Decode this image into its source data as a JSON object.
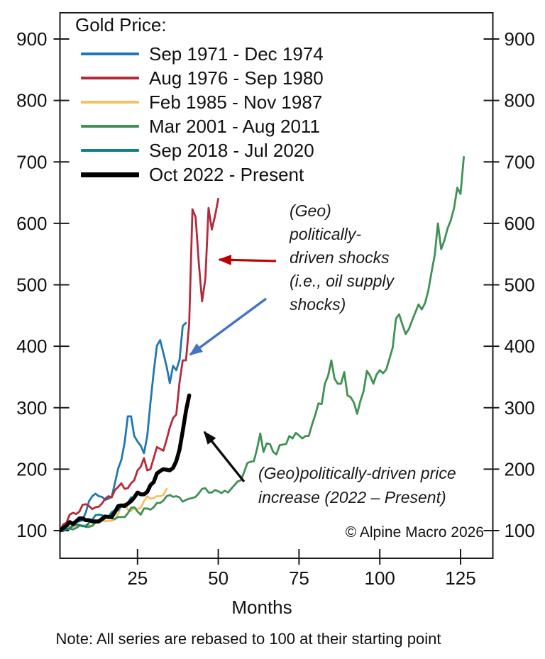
{
  "chart_data": {
    "type": "line",
    "legend_title": "Gold Price:",
    "xlabel": "Months",
    "note": "Note: All series are rebased to 100 at their starting point",
    "copyright": "© Alpine Macro 2026",
    "x_ticks": [
      25,
      50,
      75,
      100,
      125
    ],
    "y_ticks": [
      100,
      200,
      300,
      400,
      500,
      600,
      700,
      800,
      900
    ],
    "xlim": [
      1,
      135
    ],
    "ylim": [
      55,
      943
    ],
    "grid": false,
    "legend_position": "top-left",
    "axis_color": "#1a1a1a",
    "series": [
      {
        "label": "Sep 1971 - Dec 1974",
        "color": "#1f77b4",
        "line_width": 2.8,
        "values": [
          100,
          101,
          102,
          104,
          109,
          115,
          115,
          117,
          130,
          148,
          156,
          160,
          156,
          155,
          150,
          152,
          155,
          177,
          201,
          215,
          243,
          286,
          286,
          254,
          245,
          238,
          226,
          254,
          308,
          358,
          401,
          410,
          389,
          367,
          340,
          368,
          361,
          378,
          433,
          438
        ]
      },
      {
        "label": "Aug 1976 - Sep 1980",
        "color": "#b32b3b",
        "line_width": 2.8,
        "values": [
          100,
          110,
          113,
          126,
          129,
          127,
          131,
          142,
          143,
          140,
          135,
          138,
          139,
          144,
          152,
          156,
          154,
          166,
          171,
          177,
          168,
          169,
          177,
          182,
          198,
          204,
          218,
          198,
          200,
          218,
          236,
          233,
          230,
          248,
          268,
          283,
          289,
          341,
          377,
          377,
          437,
          623,
          610,
          533,
          473,
          510,
          625,
          590,
          612,
          640
        ]
      },
      {
        "label": "Feb 1985 - Nov 1987",
        "color": "#f5c15f",
        "line_width": 2.8,
        "values": [
          100,
          102,
          109,
          106,
          106,
          106,
          110,
          108,
          109,
          109,
          107,
          116,
          114,
          117,
          115,
          116,
          116,
          118,
          127,
          142,
          144,
          134,
          132,
          137,
          135,
          137,
          148,
          156,
          152,
          153,
          156,
          156,
          158,
          168
        ]
      },
      {
        "label": "Mar 2001 - Aug 2011",
        "color": "#3f9154",
        "line_width": 2.8,
        "values": [
          100,
          99,
          103,
          103,
          102,
          104,
          108,
          108,
          106,
          106,
          108,
          113,
          113,
          116,
          120,
          123,
          120,
          119,
          122,
          122,
          122,
          128,
          137,
          138,
          131,
          126,
          136,
          136,
          134,
          138,
          145,
          145,
          149,
          156,
          158,
          155,
          156,
          154,
          147,
          150,
          152,
          153,
          155,
          161,
          168,
          169,
          162,
          162,
          166,
          164,
          161,
          165,
          162,
          168,
          174,
          180,
          182,
          195,
          210,
          212,
          213,
          233,
          258,
          228,
          242,
          241,
          228,
          224,
          239,
          240,
          241,
          254,
          250,
          259,
          255,
          250,
          254,
          254,
          272,
          288,
          307,
          306,
          339,
          352,
          377,
          347,
          339,
          339,
          358,
          320,
          317,
          308,
          290,
          311,
          327,
          360,
          352,
          339,
          354,
          361,
          356,
          362,
          380,
          398,
          445,
          452,
          435,
          420,
          428,
          442,
          455,
          468,
          460,
          470,
          490,
          520,
          548,
          600,
          558,
          572,
          592,
          605,
          625,
          658,
          648,
          708
        ]
      },
      {
        "label": "Sep 2018 - Jul 2020",
        "color": "#10808d",
        "line_width": 2.8,
        "values": [
          100,
          101,
          102,
          104,
          108,
          110,
          109,
          107,
          107,
          113,
          118,
          125,
          126,
          125,
          123,
          123,
          130,
          133,
          133,
          140,
          143,
          145,
          154
        ]
      },
      {
        "label": "Oct 2022 - Present",
        "color": "#000000",
        "line_width": 5.5,
        "values": [
          100,
          104,
          108,
          114,
          111,
          115,
          120,
          120,
          117,
          117,
          115,
          115,
          115,
          119,
          123,
          122,
          122,
          130,
          140,
          141,
          140,
          144,
          148,
          154,
          162,
          159,
          159,
          163,
          174,
          179,
          193,
          197,
          200,
          199,
          198,
          202,
          213,
          232,
          262,
          295,
          320
        ]
      }
    ],
    "annotations": [
      {
        "name": "shocks-annotation",
        "text": "(Geo)\npolitically-\ndriven shocks\n(i.e., oil supply\nshocks)"
      },
      {
        "name": "increase-annotation",
        "text": "(Geo)politically-driven price\nincrease (2022 – Present)"
      }
    ],
    "arrows": [
      {
        "name": "red-arrow",
        "from": [
          389,
          368
        ],
        "to": [
          309,
          366
        ],
        "color": "#c00000",
        "width": 3.2
      },
      {
        "name": "blue-arrow",
        "from": [
          375,
          421
        ],
        "to": [
          268,
          500
        ],
        "color": "#4472c4",
        "width": 3.4
      },
      {
        "name": "black-arrow",
        "from": [
          344,
          679
        ],
        "to": [
          288,
          609
        ],
        "color": "#0d0d0d",
        "width": 3.4
      }
    ]
  }
}
